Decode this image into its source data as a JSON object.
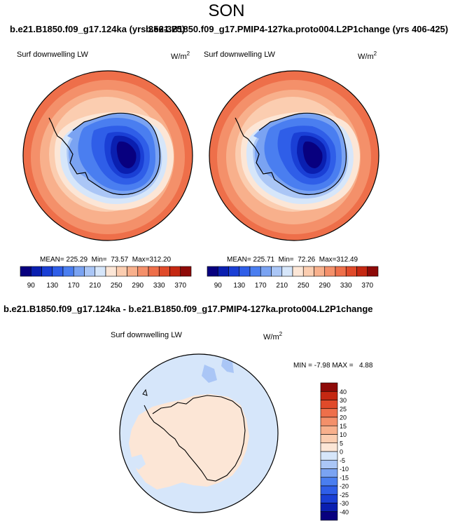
{
  "header": {
    "season": "SON",
    "title_case1": "b.e21.B1850.f09_g17.124ka (yrs 356-375)",
    "title_case2": "b.e21.B1850.f09_g17.PMIP4-127ka.proto004.L2P1change (yrs 406-425)",
    "title_diff": "b.e21.B1850.f09_g17.124ka - b.e21.B1850.f09_g17.PMIP4-127ka.proto004.L2P1change"
  },
  "panels": [
    {
      "variable": "Surf downwelling LW",
      "units_base": "W/m",
      "units_exp": "2",
      "mean_label": "MEAN=",
      "mean": "225.29",
      "min_label": "Min=",
      "min": "73.57",
      "max_label": "Max=",
      "max": "312.20"
    },
    {
      "variable": "Surf downwelling LW",
      "units_base": "W/m",
      "units_exp": "2",
      "mean_label": "MEAN=",
      "mean": "225.71",
      "min_label": "Min=",
      "min": "72.26",
      "max_label": "Max=",
      "max": "312.49"
    }
  ],
  "diff_panel": {
    "variable": "Surf downwelling LW",
    "units_base": "W/m",
    "units_exp": "2",
    "min_label": "MIN =",
    "min": "-7.98",
    "max_label": "MAX =",
    "max": "4.88"
  },
  "colorbar_abs": {
    "labels": [
      "90",
      "130",
      "170",
      "210",
      "250",
      "290",
      "330",
      "370"
    ],
    "colors": [
      "#08007f",
      "#0a1fb0",
      "#1a3fd5",
      "#2f5ee8",
      "#4a7ef0",
      "#7aa3f2",
      "#aac6f6",
      "#d6e6fa",
      "#fce6d6",
      "#fbcdb0",
      "#f8b08c",
      "#f4906a",
      "#ee6f4a",
      "#e04a2a",
      "#c52812",
      "#8e0a08"
    ]
  },
  "colorbar_diff": {
    "labels": [
      "40",
      "30",
      "25",
      "20",
      "15",
      "10",
      "5",
      "0",
      "-5",
      "-10",
      "-15",
      "-20",
      "-25",
      "-30",
      "-40"
    ],
    "colors": [
      "#8e0a08",
      "#c52812",
      "#e04a2a",
      "#ee6f4a",
      "#f4906a",
      "#f8b08c",
      "#fbcdb0",
      "#fce6d6",
      "#d6e6fa",
      "#aac6f6",
      "#7aa3f2",
      "#4a7ef0",
      "#2f5ee8",
      "#1a3fd5",
      "#0a1fb0",
      "#08007f"
    ]
  }
}
